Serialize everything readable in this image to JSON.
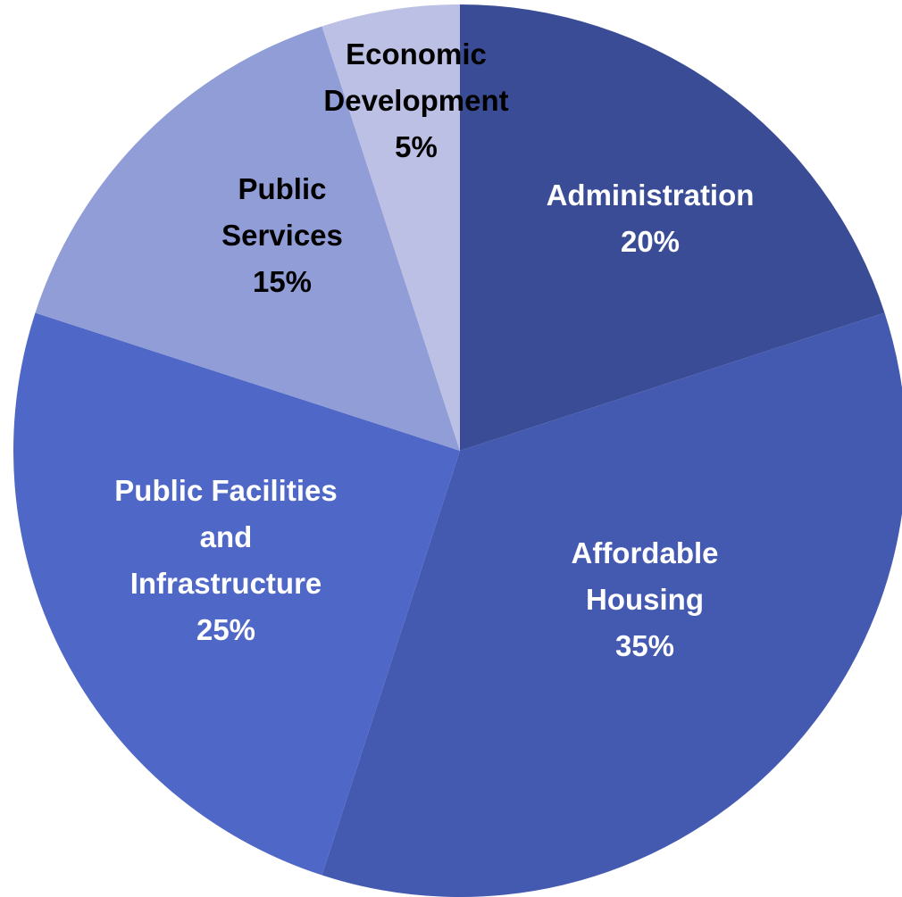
{
  "chart_data": {
    "type": "pie",
    "title": "",
    "start_angle_deg": 0,
    "direction": "clockwise",
    "legend": "none",
    "slices": [
      {
        "label": [
          "Administration"
        ],
        "value": 20,
        "percent_label": "20%",
        "color": "#3b4c96",
        "text_color": "#ffffff"
      },
      {
        "label": [
          "Affordable",
          "Housing"
        ],
        "value": 35,
        "percent_label": "35%",
        "color": "#4459b0",
        "text_color": "#ffffff"
      },
      {
        "label": [
          "Public Facilities",
          "and",
          "Infrastructure"
        ],
        "value": 25,
        "percent_label": "25%",
        "color": "#4f67c7",
        "text_color": "#ffffff"
      },
      {
        "label": [
          "Public",
          "Services"
        ],
        "value": 15,
        "percent_label": "15%",
        "color": "#919dd7",
        "text_color": "#000000"
      },
      {
        "label": [
          "Economic",
          "Development"
        ],
        "value": 5,
        "percent_label": "5%",
        "color": "#bcc0e4",
        "text_color": "#000000"
      }
    ]
  }
}
